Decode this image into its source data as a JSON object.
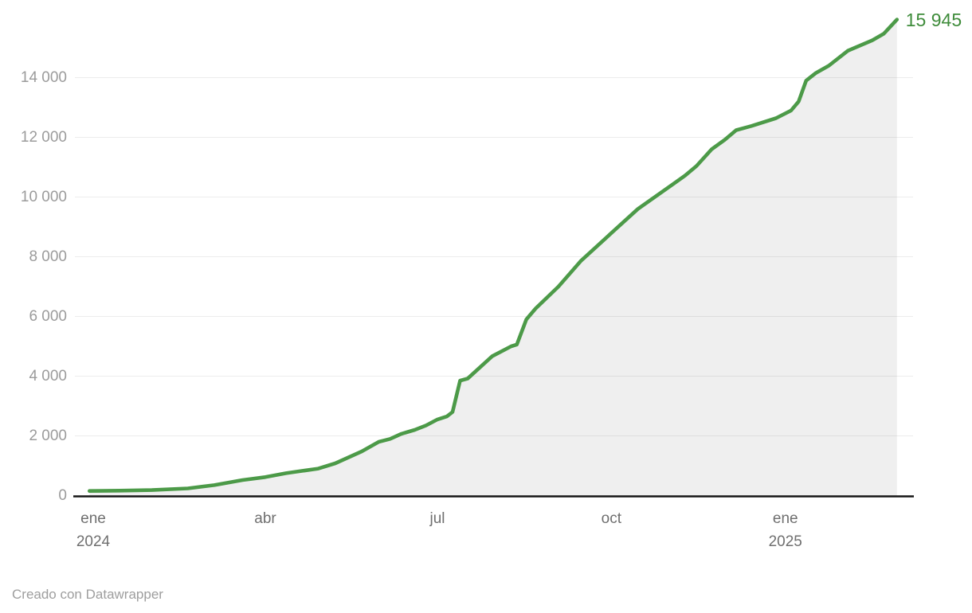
{
  "chart_data": {
    "type": "area",
    "title": "",
    "xlabel": "",
    "ylabel": "",
    "ylim": [
      0,
      16000
    ],
    "grid": true,
    "legend": "none",
    "end_label": "15 945",
    "end_value": 15945,
    "series": [
      {
        "name": "cumulative-count",
        "points": [
          {
            "date": "2023-12-30",
            "value": 155
          },
          {
            "date": "2024-01-15",
            "value": 165
          },
          {
            "date": "2024-02-01",
            "value": 185
          },
          {
            "date": "2024-02-20",
            "value": 240
          },
          {
            "date": "2024-03-05",
            "value": 350
          },
          {
            "date": "2024-03-20",
            "value": 520
          },
          {
            "date": "2024-04-01",
            "value": 620
          },
          {
            "date": "2024-04-12",
            "value": 750
          },
          {
            "date": "2024-04-29",
            "value": 905
          },
          {
            "date": "2024-05-08",
            "value": 1080
          },
          {
            "date": "2024-05-22",
            "value": 1480
          },
          {
            "date": "2024-05-31",
            "value": 1800
          },
          {
            "date": "2024-06-06",
            "value": 1900
          },
          {
            "date": "2024-06-12",
            "value": 2070
          },
          {
            "date": "2024-06-19",
            "value": 2200
          },
          {
            "date": "2024-06-25",
            "value": 2350
          },
          {
            "date": "2024-07-01",
            "value": 2550
          },
          {
            "date": "2024-07-06",
            "value": 2650
          },
          {
            "date": "2024-07-09",
            "value": 2800
          },
          {
            "date": "2024-07-13",
            "value": 3850
          },
          {
            "date": "2024-07-17",
            "value": 3920
          },
          {
            "date": "2024-07-30",
            "value": 4670
          },
          {
            "date": "2024-08-09",
            "value": 5000
          },
          {
            "date": "2024-08-12",
            "value": 5060
          },
          {
            "date": "2024-08-17",
            "value": 5900
          },
          {
            "date": "2024-08-22",
            "value": 6270
          },
          {
            "date": "2024-09-03",
            "value": 7000
          },
          {
            "date": "2024-09-15",
            "value": 7870
          },
          {
            "date": "2024-10-02",
            "value": 8850
          },
          {
            "date": "2024-10-15",
            "value": 9600
          },
          {
            "date": "2024-11-03",
            "value": 10450
          },
          {
            "date": "2024-11-09",
            "value": 10720
          },
          {
            "date": "2024-11-15",
            "value": 11040
          },
          {
            "date": "2024-11-23",
            "value": 11600
          },
          {
            "date": "2024-11-30",
            "value": 11920
          },
          {
            "date": "2024-12-06",
            "value": 12240
          },
          {
            "date": "2024-12-14",
            "value": 12380
          },
          {
            "date": "2024-12-27",
            "value": 12640
          },
          {
            "date": "2025-01-04",
            "value": 12900
          },
          {
            "date": "2025-01-08",
            "value": 13200
          },
          {
            "date": "2025-01-12",
            "value": 13900
          },
          {
            "date": "2025-01-17",
            "value": 14150
          },
          {
            "date": "2025-01-24",
            "value": 14400
          },
          {
            "date": "2025-02-03",
            "value": 14900
          },
          {
            "date": "2025-02-16",
            "value": 15250
          },
          {
            "date": "2025-02-22",
            "value": 15470
          },
          {
            "date": "2025-03-01",
            "value": 15945
          }
        ]
      }
    ],
    "y_ticks": [
      {
        "value": 0,
        "label": "0"
      },
      {
        "value": 2000,
        "label": "2 000"
      },
      {
        "value": 4000,
        "label": "4 000"
      },
      {
        "value": 6000,
        "label": "6 000"
      },
      {
        "value": 8000,
        "label": "8 000"
      },
      {
        "value": 10000,
        "label": "10 000"
      },
      {
        "value": 12000,
        "label": "12 000"
      },
      {
        "value": 14000,
        "label": "14 000"
      }
    ],
    "x_ticks": [
      {
        "date": "2024-01-01",
        "label": "ene",
        "sublabel": "2024"
      },
      {
        "date": "2024-04-01",
        "label": "abr",
        "sublabel": ""
      },
      {
        "date": "2024-07-01",
        "label": "jul",
        "sublabel": ""
      },
      {
        "date": "2024-10-01",
        "label": "oct",
        "sublabel": ""
      },
      {
        "date": "2025-01-01",
        "label": "ene",
        "sublabel": "2025"
      }
    ],
    "colors": {
      "line": "#4c9a48",
      "area": "#efefef",
      "end_label": "#3f8c3b",
      "grid": "rgba(0,0,0,0.075)",
      "axis": "#151515",
      "y_tick_text": "#9b9b9b",
      "x_tick_text": "#6f6f6f"
    }
  },
  "footer": {
    "credit": "Creado con Datawrapper"
  }
}
